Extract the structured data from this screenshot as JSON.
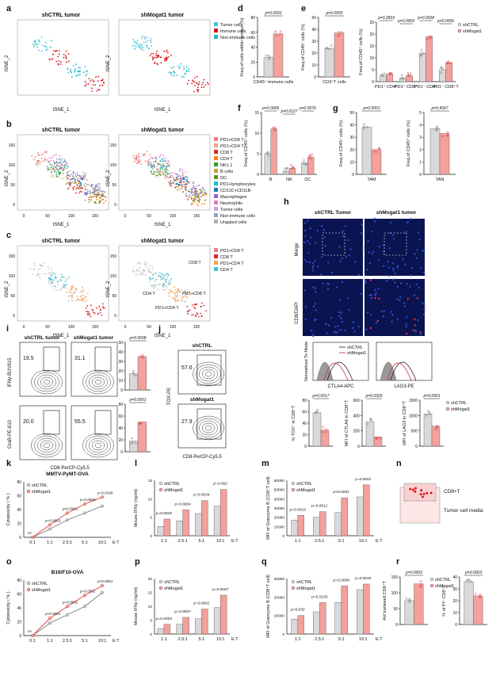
{
  "colors": {
    "ctrl": "#d9d9d9",
    "treat": "#f4a09c",
    "treat_dot": "#e0403c",
    "tumor": "#3fc4d6",
    "immune": "#d8161c",
    "nonimmune": "#19b8c4"
  },
  "panel_letters": [
    "a",
    "b",
    "c",
    "d",
    "e",
    "f",
    "g",
    "h",
    "i",
    "j",
    "k",
    "l",
    "m",
    "n",
    "o",
    "p",
    "q",
    "r"
  ],
  "tsne": {
    "xlabel": "tSNE_1",
    "ylabel": "tSNE_2",
    "a": {
      "left_title": "shCTRL tumor",
      "right_title": "shMogat1 tumor",
      "legend": [
        {
          "label": "Tumor cells",
          "color": "#3fc4d6"
        },
        {
          "label": "Immune cells",
          "color": "#d8161c"
        },
        {
          "label": "Non-immune cells",
          "color": "#19b8c4"
        }
      ]
    },
    "b": {
      "left_title": "shCTRL tumor",
      "right_title": "shMogat1 tumor",
      "legend": [
        {
          "label": "PD1+CD8 T",
          "color": "#f08080"
        },
        {
          "label": "PD1+CD4 T",
          "color": "#f4a582"
        },
        {
          "label": "CD8 T",
          "color": "#d62728"
        },
        {
          "label": "CD4 T",
          "color": "#ff7f0e"
        },
        {
          "label": "NK1.1",
          "color": "#2ca02c"
        },
        {
          "label": "B cells",
          "color": "#c2a33a"
        },
        {
          "label": "DC",
          "color": "#6b8e23"
        },
        {
          "label": "PD1+lymphocytes",
          "color": "#17becf"
        },
        {
          "label": "CD11C+CD11B-",
          "color": "#1f77b4"
        },
        {
          "label": "Macrophages",
          "color": "#9467bd"
        },
        {
          "label": "Neutrophils",
          "color": "#e377c2"
        },
        {
          "label": "Tumor cells",
          "color": "#c9a3e6"
        },
        {
          "label": "Non-immune cells",
          "color": "#8fa3bf"
        },
        {
          "label": "Ungated cells",
          "color": "#b0b0b0"
        }
      ],
      "ticks": [
        "0",
        "50",
        "100",
        "150"
      ]
    },
    "c": {
      "left_title": "shCTRL tumor",
      "right_title": "shMogat1 tumor",
      "legend": [
        {
          "label": "PD1+CD8 T",
          "color": "#f08080"
        },
        {
          "label": "CD8 T",
          "color": "#d62728"
        },
        {
          "label": "PD1+CD4 T",
          "color": "#ff9f40"
        },
        {
          "label": "CD4 T",
          "color": "#3fc4d6"
        }
      ],
      "annotations": [
        "CD8 T",
        "PD1+CD8 T",
        "CD4 T",
        "PD1+CD4 T"
      ],
      "ticks": [
        "0",
        "50",
        "100",
        "150"
      ]
    }
  },
  "bar_panels": {
    "d": {
      "ylabel": "Freq.of cells within tumour (%)",
      "yticks": [
        "0",
        "20",
        "40",
        "60",
        "80"
      ],
      "ymax": 80,
      "groups": [
        {
          "label": "CD45⁺ immune cells",
          "ctrl": 26,
          "treat": 58
        }
      ],
      "pvals": [
        "p=0.0002"
      ]
    },
    "e": {
      "ylabel": "Freq.of CD45⁺ cells (%)",
      "yticks": [
        "0",
        "10",
        "20",
        "30",
        "40",
        "50"
      ],
      "ymax": 50,
      "groups": [
        {
          "label": "CD3⁺T cells",
          "ctrl": 24,
          "treat": 37
        }
      ],
      "pvals": [
        "p=0.0005"
      ]
    },
    "e2": {
      "ylabel": "Freq.of CD45⁺ cells (%)",
      "yticks": [
        "0",
        "5",
        "10",
        "15",
        "20",
        "25"
      ],
      "ymax": 25,
      "legend": [
        "shCTRL",
        "shMogat1"
      ],
      "groups": [
        {
          "label": "PD1⁺ CD4⁺",
          "ctrl": 2.5,
          "treat": 3.2
        },
        {
          "label": "PD1⁺ CD8⁺",
          "ctrl": 1.5,
          "treat": 2.5
        },
        {
          "label": "PD1⁻ CD4⁺",
          "ctrl": 12,
          "treat": 19
        },
        {
          "label": "PD1⁻ CD8⁺T",
          "ctrl": 5,
          "treat": 8
        }
      ],
      "pvals": [
        "p=0.2833",
        "p=0.0009",
        "p=0.0028",
        "p=0.0006"
      ]
    },
    "f": {
      "ylabel": "Freq.of CD45⁺ cells (%)",
      "yticks": [
        "0",
        "5",
        "10",
        "15"
      ],
      "ymax": 15,
      "groups": [
        {
          "label": "B",
          "ctrl": 5,
          "treat": 11
        },
        {
          "label": "NK",
          "ctrl": 0.8,
          "treat": 1.5
        },
        {
          "label": "DC",
          "ctrl": 2.8,
          "treat": 4.2
        }
      ],
      "pvals": [
        "p=0.0006",
        "p=0.0127",
        "p=0.0076"
      ]
    },
    "g1": {
      "ylabel": "Freq.of CD45⁺ cells (%)",
      "yticks": [
        "0",
        "10",
        "20",
        "30",
        "40",
        "50"
      ],
      "ymax": 50,
      "groups": [
        {
          "label": "TAM",
          "ctrl": 38,
          "treat": 20
        }
      ],
      "pvals": [
        "p=0.0001"
      ]
    },
    "g2": {
      "ylabel": "Freq.of CD45⁺ cells (%)",
      "yticks": [
        "0",
        "1",
        "2",
        "3",
        "4",
        "5"
      ],
      "ymax": 5,
      "groups": [
        {
          "label": "TAN",
          "ctrl": 3.7,
          "treat": 3.3
        }
      ],
      "pvals": [
        "p=0.4047"
      ]
    },
    "i1": {
      "ylabel": "% IFNγ⁺ in CD8⁺T",
      "yticks": [
        "0",
        "10",
        "20",
        "30",
        "40",
        "50"
      ],
      "ymax": 50,
      "groups": [
        {
          "label": "",
          "ctrl": 17,
          "treat": 35
        }
      ],
      "pvals": [
        "p=0.0008"
      ]
    },
    "i2": {
      "ylabel": "% GraB⁺ in CD8⁺T",
      "yticks": [
        "0",
        "20",
        "40",
        "60",
        "80"
      ],
      "ymax": 80,
      "groups": [
        {
          "label": "",
          "ctrl": 18,
          "treat": 50
        }
      ],
      "pvals": [
        "p=0.0001"
      ]
    },
    "j1": {
      "ylabel": "% TOX⁺ in CD8⁺T",
      "yticks": [
        "0",
        "20",
        "40",
        "60",
        "80"
      ],
      "ymax": 80,
      "groups": [
        {
          "label": "",
          "ctrl": 58,
          "treat": 28
        }
      ],
      "pvals": [
        "p=0.0017"
      ]
    },
    "j2": {
      "ylabel": "MFI of CTLA4 in CD8⁺T",
      "yticks": [
        "0",
        "200",
        "400",
        "600"
      ],
      "ymax": 600,
      "groups": [
        {
          "label": "",
          "ctrl": 320,
          "treat": 120
        }
      ],
      "pvals": [
        "p=0.0326"
      ]
    },
    "j3": {
      "ylabel": "MFI of LAG3 in CD8⁺T",
      "yticks": [
        "0",
        "500",
        "1000",
        "1500"
      ],
      "ymax": 1500,
      "legend": [
        "shCTRL",
        "shMogat1"
      ],
      "groups": [
        {
          "label": "",
          "ctrl": 1050,
          "treat": 650
        }
      ],
      "pvals": [
        "p=0.0001"
      ]
    },
    "r1": {
      "ylabel": "#of transwell CD8⁺T",
      "yticks": [
        "0",
        "50",
        "100",
        "150"
      ],
      "ymax": 150,
      "legend": [
        "shCTRL",
        "shMogat1"
      ],
      "groups": [
        {
          "label": "",
          "ctrl": 75,
          "treat": 128
        }
      ],
      "pvals": [
        "p=0.0002"
      ]
    },
    "r2": {
      "ylabel": "% of PI⁺ CD8⁺T",
      "yticks": [
        "0",
        "10",
        "20",
        "30",
        "40"
      ],
      "ymax": 40,
      "groups": [
        {
          "label": "",
          "ctrl": 36,
          "treat": 24
        }
      ],
      "pvals": [
        "p=0.0003"
      ]
    }
  },
  "grouped_panels": {
    "l": {
      "ylabel": "Mouse IFNγ (ng/ml)",
      "yticks": [
        "0",
        "5",
        "10",
        "15"
      ],
      "ymax": 15,
      "cats": [
        "1:1",
        "2.5:1",
        "5:1",
        "10:1"
      ],
      "xend": "E:T",
      "legend": [
        "shCTRL",
        "shMogat1"
      ],
      "ctrl": [
        2.5,
        4,
        6,
        8
      ],
      "treat": [
        4.5,
        7,
        9.5,
        12.5
      ],
      "pvals": [
        "p=0.0026",
        "p=0.0004",
        "p=0.0034",
        "p=0.002"
      ]
    },
    "m": {
      "ylabel": "MFI of Granzyme B (CD8⁺T cell)",
      "yticks": [
        "0",
        "10000",
        "20000",
        "30000",
        "40000",
        "50000",
        "60000"
      ],
      "ymax": 60000,
      "cats": [
        "1:1",
        "2.5:1",
        "5:1",
        "10:1"
      ],
      "xend": "E:T",
      "legend": [
        "shCTRL",
        "shMogat1"
      ],
      "ctrl": [
        17000,
        20000,
        25000,
        42000
      ],
      "treat": [
        22000,
        26000,
        41000,
        55000
      ],
      "pvals": [
        "p=0.0019",
        "p=0.0012",
        "p<0.0001",
        "p=0.0001"
      ]
    },
    "o": {
      "ylabel": "Mouse IFNγ (ng/ml)",
      "yticks": [
        "0",
        "5",
        "10",
        "15",
        "20"
      ],
      "ymax": 20,
      "cats": [
        "1:1",
        "2.5:1",
        "5:1",
        "10:1"
      ],
      "xend": "E:T",
      "legend": [
        "shCTRL",
        "shMogat1"
      ],
      "ctrl": [
        2,
        3.5,
        5.5,
        9.5
      ],
      "treat": [
        3.5,
        6,
        9,
        14
      ],
      "pvals": [
        "p=0.0004",
        "p=0.0007",
        "p=0.0001",
        "p=0.0007"
      ]
    },
    "p": {
      "ylabel": "MFI of Granzyme B (CD8⁺T cell)",
      "yticks": [
        "0",
        "10000",
        "20000",
        "30000"
      ],
      "ymax": 30000,
      "cats": [
        "1:1",
        "2.5:1",
        "5:1",
        "10:1"
      ],
      "xend": "E:T",
      "legend": [
        "shCTRL",
        "shMogat1"
      ],
      "ctrl": [
        8000,
        12000,
        17000,
        24000
      ],
      "treat": [
        10000,
        17000,
        26000,
        27000
      ],
      "pvals": [
        "p=0.033",
        "p=0.0159",
        "p=0.0008",
        "p=0.0018"
      ]
    }
  },
  "line_panels": {
    "k": {
      "title": "MMTV-PyMT-OVA",
      "ylabel": "Cytotoxicity ( % )",
      "yticks": [
        "0",
        "20",
        "40",
        "60",
        "80"
      ],
      "ymax": 80,
      "x": [
        "0:1",
        "1:1",
        "2.5:1",
        "5:1",
        "10:1"
      ],
      "xend": "E:T",
      "legend": [
        "shCTRL",
        "shMogat1"
      ],
      "ctrl": [
        0,
        12,
        25,
        35,
        45
      ],
      "treat": [
        0,
        18,
        35,
        48,
        58
      ],
      "pvals": [
        "ns",
        "p=0.0003",
        "p<0.0001",
        "p=0.0006",
        "p=0.0190"
      ]
    },
    "n": {
      "title": "B16/F10-OVA",
      "ylabel": "Cytotoxicity ( % )",
      "yticks": [
        "0",
        "20",
        "40",
        "60",
        "80"
      ],
      "ymax": 80,
      "x": [
        "0:1",
        "1:1",
        "2.5:1",
        "5:1",
        "10:1"
      ],
      "xend": "E:T",
      "legend": [
        "shCTRL",
        "shMogat1"
      ],
      "ctrl": [
        0,
        18,
        30,
        42,
        62
      ],
      "treat": [
        0,
        25,
        42,
        58,
        72
      ],
      "pvals": [
        "ns",
        "p<0.0001",
        "p=0.0002",
        "p=0.0001",
        "p<0.0001"
      ]
    }
  },
  "flow": {
    "i": {
      "titles": [
        "shCTRL tumor",
        "shMogat1 tumor"
      ],
      "top_values": [
        "19.5",
        "31.1"
      ],
      "bottom_values": [
        "20.0",
        "55.5"
      ],
      "ylabels": [
        "IFNγ-BUV615",
        "GraB-PE-610"
      ],
      "xlabel": "CD8-PerCP-Cy5.5"
    },
    "j": {
      "titles": [
        "shCTRL",
        "shMogat1"
      ],
      "values": [
        "57.6",
        "27.9"
      ],
      "ylabel": "TOX-PE",
      "xlabel": "CD8-PerCP-Cy5.5",
      "hist_ylabel": "Normalized To Mode",
      "hist_xlabels": [
        "CTLA4-APC",
        "LAG3-PE"
      ],
      "legend": [
        "shCTRL",
        "shMogat1"
      ]
    }
  },
  "micro": {
    "titles": [
      "shCTRL Tumor",
      "shMogat1 tumor"
    ],
    "row_labels": [
      "Merge",
      "CD8/DAPI"
    ]
  },
  "transwell": {
    "labels": [
      "CD8+T",
      "Tumor cell media"
    ]
  }
}
